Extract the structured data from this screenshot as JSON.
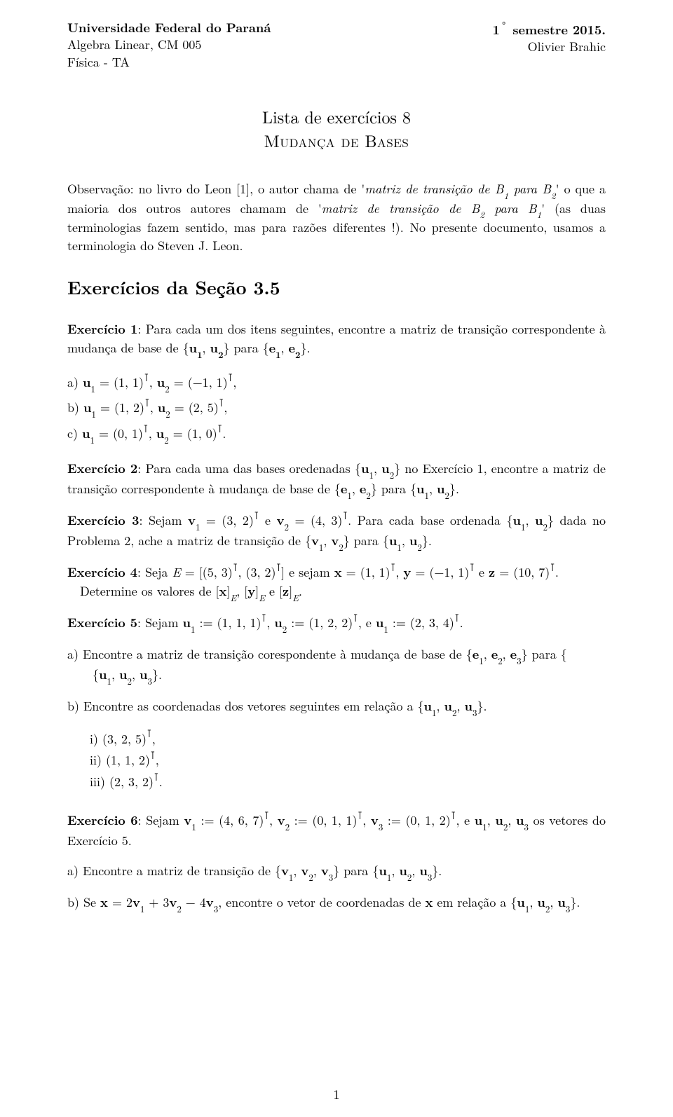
{
  "header": {
    "univ": "Universidade Federal do Paraná",
    "course": "Algebra Linear, CM 005",
    "program": "Física - TA",
    "semester_pre": "1",
    "semester_sup": "◦",
    "semester_post": " semestre 2015.",
    "author": "Olivier Brahic"
  },
  "title": {
    "line1": "Lista de exercícios 8",
    "line2": "Mudança de Bases"
  },
  "observation_parts": {
    "p1": "Observação: no livro do Leon [1], o autor chama de '",
    "i1": "matriz de transição de B",
    "s1": "1",
    "i2": " para B",
    "s2": "2",
    "p2": "' o que a maioria dos outros autores chamam de '",
    "i3": "matriz de transição de B",
    "s3": "2",
    "i4": " para B",
    "s4": "1",
    "p3": "' (as duas terminologias fazem sentido, mas para razões diferentes !). No presente documento, usamos a terminologia do Steven J. Leon."
  },
  "section_title": "Exercícios da Seção 3.5",
  "ex1": {
    "label": "Exercício 1",
    "text_a": ": Para cada um dos itens seguintes, encontre a matriz de transição correspondente à mudança de base de {",
    "u1": "u",
    "u1s": "1",
    "comma1": ", ",
    "u2": "u",
    "u2s": "2",
    "text_b": "} para {",
    "e1": "e",
    "e1s": "1",
    "comma2": ", ",
    "e2": "e",
    "e2s": "2",
    "text_c": "}."
  },
  "ex1_items": {
    "a": "a) ",
    "b": "b) ",
    "c": "c) ",
    "u1_a": "(1, 1)",
    "u2_a": "(−1, 1)",
    "u1_b": "(1, 2)",
    "u2_b": "(2, 5)",
    "u1_c": "(0, 1)",
    "u2_c": "(1, 0)"
  },
  "ex2": {
    "label": "Exercício 2",
    "text_a": ": Para cada uma das bases oredenadas {",
    "text_b": "} no Exercício 1, encontre a matriz de transição correspondente à mudança de base de {",
    "text_c": "} para {",
    "text_d": "}."
  },
  "ex3": {
    "label": "Exercício 3",
    "text_a": ": Sejam ",
    "v1": "(3, 2)",
    "v2": "(4, 3)",
    "text_b": ". Para cada base ordenada {",
    "text_c": "} dada no Problema 2, ache a matriz de transição de {",
    "text_d": "} para {",
    "text_e": "}."
  },
  "ex4": {
    "label": "Exercício 4",
    "text_a": ": Seja ",
    "E_a": "(5, 3)",
    "E_b": "(3, 2)",
    "text_b": " e sejam ",
    "x": "(1, 1)",
    "y": "(−1, 1)",
    "z": "(10, 7)",
    "text_c": ".",
    "text_d": "Determine os valores de [",
    "xe": "x",
    "ye": "y",
    "ze": "z",
    "text_e": "."
  },
  "ex5": {
    "label": "Exercício 5",
    "text_a": ": Sejam ",
    "u1": "(1, 1, 1)",
    "u2": "(1, 2, 2)",
    "u3": "(2, 3, 4)",
    "text_b": "."
  },
  "ex5_a": {
    "tag": "a) ",
    "text_a": "Encontre a matriz de transição corespondente à mudança de base de {",
    "text_b": "} para {",
    "text_c": "}."
  },
  "ex5_b": {
    "tag": "b) ",
    "text_a": "Encontre as coordenadas dos vetores seguintes em relação a {",
    "text_b": "}."
  },
  "ex5_b_items": {
    "i": "i) ",
    "i_v": "(3, 2, 5)",
    "ii": "ii) ",
    "ii_v": "(1, 1, 2)",
    "iii": "iii) ",
    "iii_v": "(2, 3, 2)"
  },
  "ex6": {
    "label": "Exercício 6",
    "text_a": ": Sejam ",
    "v1": "(4, 6, 7)",
    "v2": "(0, 1, 1)",
    "v3": "(0, 1, 2)",
    "text_b": ", e ",
    "text_c": " os vetores do Exercício 5."
  },
  "ex6_a": {
    "tag": "a) ",
    "text_a": "Encontre a matriz de transição de {",
    "text_b": "} para {",
    "text_c": "}."
  },
  "ex6_b": {
    "tag": "b) ",
    "text_a": "Se ",
    "eq": "x = 2v₁ + 3v₂ − 4v₃",
    "text_b": ", encontre o vetor de coordenadas de ",
    "text_c": " em relação a {",
    "text_d": "}."
  },
  "pagenum": "1",
  "sym": {
    "u": "u",
    "v": "v",
    "e": "e",
    "x": "x",
    "y": "y",
    "z": "z",
    "E": "E",
    "T": "⊺",
    "assign": " := ",
    "eq": " = ",
    "and_e": " e ",
    "comma": ", ",
    "semicolon": ",   ",
    "s1": "1",
    "s2": "2",
    "s3": "3",
    "lbr": "[",
    "rbr": "]",
    "sub_E": "E"
  }
}
